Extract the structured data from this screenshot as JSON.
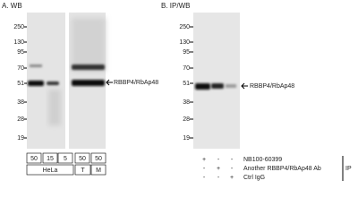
{
  "panel_a": {
    "title": "A. WB",
    "markers": [
      "250",
      "130",
      "95",
      "70",
      "51",
      "38",
      "28",
      "19"
    ],
    "band_label": "RBBP4/RbAp48",
    "lanes": [
      "50",
      "15",
      "5",
      "50",
      "50"
    ],
    "groups": [
      "HeLa",
      "T",
      "M"
    ]
  },
  "panel_b": {
    "title": "B. IP/WB",
    "markers": [
      "250",
      "130",
      "95",
      "70",
      "51",
      "38",
      "28",
      "19"
    ],
    "band_label": "RBBP4/RbAp48",
    "rows": [
      {
        "label": "NB100-60399",
        "signs": [
          "+",
          "-",
          "-"
        ]
      },
      {
        "label": "Another RBBP4/RbAp48 Ab",
        "signs": [
          "-",
          "+",
          "-"
        ]
      },
      {
        "label": "Ctrl IgG",
        "signs": [
          "-",
          "-",
          "+"
        ]
      }
    ],
    "ip_label": "IP"
  }
}
